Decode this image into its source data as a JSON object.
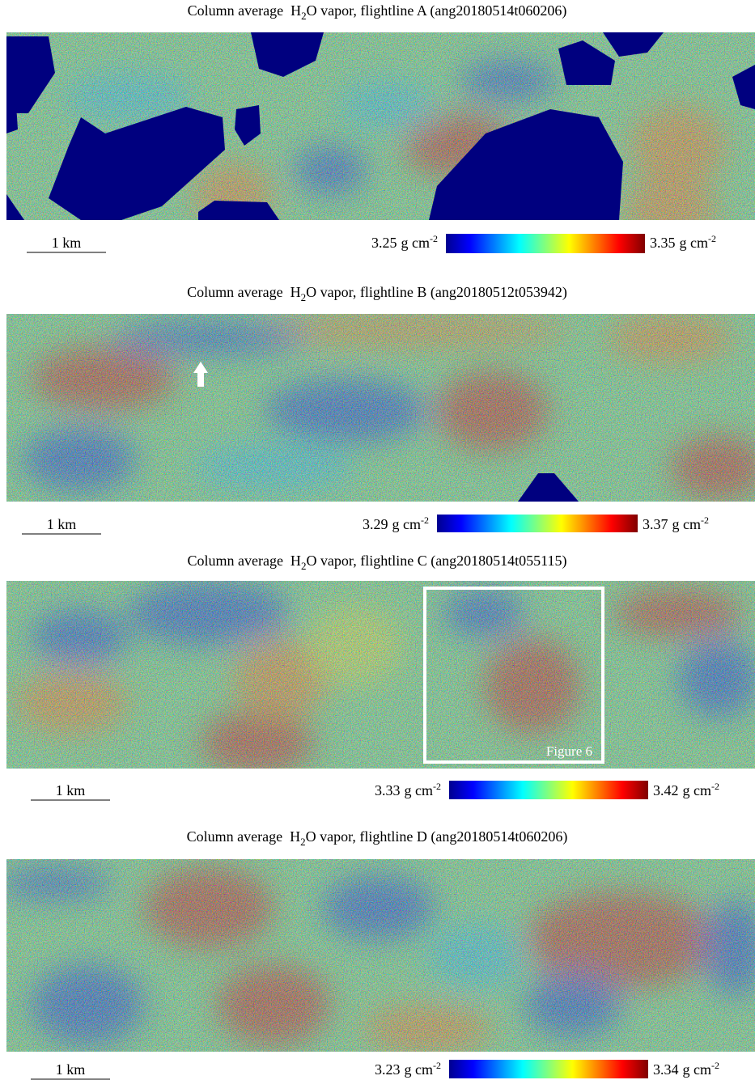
{
  "panels": [
    {
      "title": {
        "prefix": "Column average  H",
        "subscript": "2",
        "suffix": "O vapor, flightline A (ang20180514t060206)"
      },
      "scale_bar": "1 km",
      "colorbar": {
        "min": 3.25,
        "max": 3.35,
        "unit": "g cm",
        "unit_exponent": "-2"
      }
    },
    {
      "title": {
        "prefix": "Column average  H",
        "subscript": "2",
        "suffix": "O vapor, flightline B (ang20180512t053942)"
      },
      "scale_bar": "1 km",
      "colorbar": {
        "min": 3.29,
        "max": 3.37,
        "unit": "g cm",
        "unit_exponent": "-2"
      }
    },
    {
      "title": {
        "prefix": "Column average  H",
        "subscript": "2",
        "suffix": "O vapor, flightline C (ang20180514t055115)"
      },
      "scale_bar": "1 km",
      "colorbar": {
        "min": 3.33,
        "max": 3.42,
        "unit": "g cm",
        "unit_exponent": "-2"
      },
      "inset_label": "Figure 6"
    },
    {
      "title": {
        "prefix": "Column average  H",
        "subscript": "2",
        "suffix": "O vapor, flightline D (ang20180514t060206)"
      },
      "scale_bar": "1 km",
      "colorbar": {
        "min": 3.23,
        "max": 3.34,
        "unit": "g cm",
        "unit_exponent": "-2"
      }
    }
  ]
}
